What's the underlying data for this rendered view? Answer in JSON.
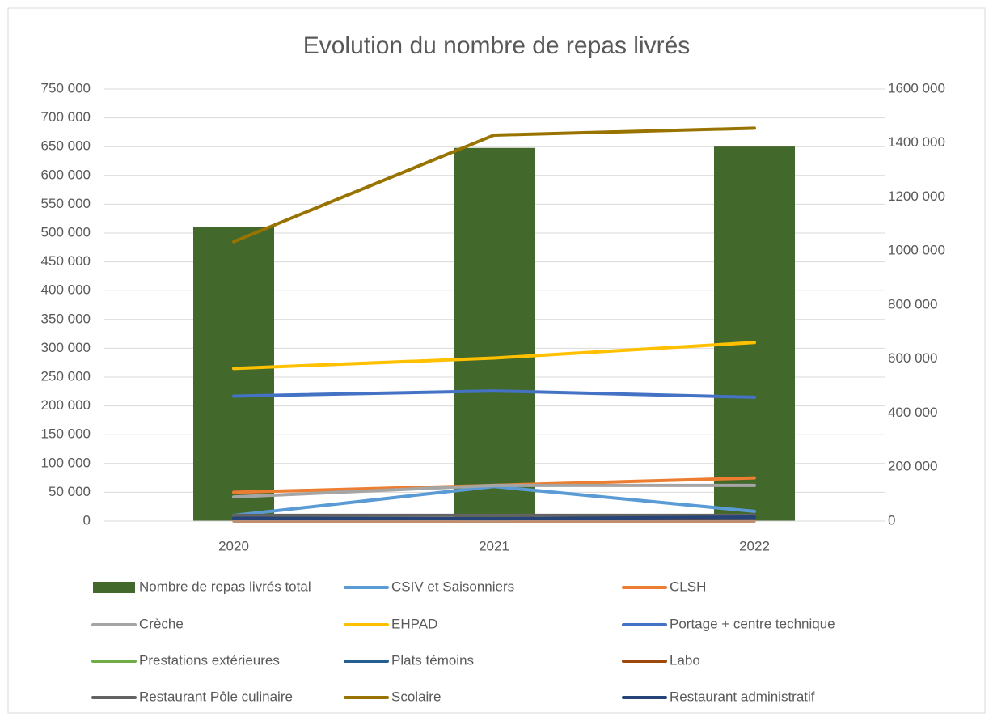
{
  "chart_data": {
    "type": "combo",
    "title": "Evolution du nombre de repas livrés",
    "categories": [
      "2020",
      "2021",
      "2022"
    ],
    "ylim": [
      0,
      750000
    ],
    "yticks": [
      {
        "value": 0,
        "label": "0"
      },
      {
        "value": 50000,
        "label": "50 000"
      },
      {
        "value": 100000,
        "label": "100 000"
      },
      {
        "value": 150000,
        "label": "150 000"
      },
      {
        "value": 200000,
        "label": "200 000"
      },
      {
        "value": 250000,
        "label": "250 000"
      },
      {
        "value": 300000,
        "label": "300 000"
      },
      {
        "value": 350000,
        "label": "350 000"
      },
      {
        "value": 400000,
        "label": "400 000"
      },
      {
        "value": 450000,
        "label": "450 000"
      },
      {
        "value": 500000,
        "label": "500 000"
      },
      {
        "value": 550000,
        "label": "550 000"
      },
      {
        "value": 600000,
        "label": "600 000"
      },
      {
        "value": 650000,
        "label": "650 000"
      },
      {
        "value": 700000,
        "label": "700 000"
      },
      {
        "value": 750000,
        "label": "750 000"
      }
    ],
    "y2lim": [
      0,
      1600000
    ],
    "y2ticks": [
      {
        "value": 0,
        "label": "0"
      },
      {
        "value": 200000,
        "label": "200 000"
      },
      {
        "value": 400000,
        "label": "400 000"
      },
      {
        "value": 600000,
        "label": "600 000"
      },
      {
        "value": 800000,
        "label": "800 000"
      },
      {
        "value": 1000000,
        "label": "1000 000"
      },
      {
        "value": 1200000,
        "label": "1200 000"
      },
      {
        "value": 1400000,
        "label": "1400 000"
      },
      {
        "value": 1600000,
        "label": "1600 000"
      }
    ],
    "grid": true,
    "series": [
      {
        "name": "Nombre de repas livrés total",
        "type": "bar",
        "axis": "y2",
        "color": "#43682b",
        "values": [
          1090000,
          1382000,
          1387000
        ]
      },
      {
        "name": "CSIV et Saisonniers",
        "type": "line",
        "color": "#5b9bd5",
        "values": [
          10000,
          60000,
          17000
        ]
      },
      {
        "name": "CLSH",
        "type": "line",
        "color": "#ed7d31",
        "values": [
          50000,
          62000,
          75000
        ]
      },
      {
        "name": "Crèche",
        "type": "line",
        "color": "#a5a5a5",
        "values": [
          42000,
          62000,
          62000
        ]
      },
      {
        "name": "EHPAD",
        "type": "line",
        "color": "#ffc000",
        "values": [
          265000,
          283000,
          310000
        ]
      },
      {
        "name": "Portage + centre technique",
        "type": "line",
        "color": "#4472c4",
        "values": [
          217000,
          226000,
          215000
        ]
      },
      {
        "name": "Prestations extérieures",
        "type": "line",
        "color": "#70ad47",
        "values": [
          1000,
          1000,
          1000
        ]
      },
      {
        "name": "Plats témoins",
        "type": "line",
        "color": "#255e91",
        "values": [
          3000,
          3000,
          3000
        ]
      },
      {
        "name": "Labo",
        "type": "line",
        "color": "#9e480e",
        "values": [
          500,
          500,
          500
        ]
      },
      {
        "name": "Restaurant Pôle culinaire",
        "type": "line",
        "color": "#636363",
        "values": [
          10000,
          10000,
          10000
        ]
      },
      {
        "name": "Scolaire",
        "type": "line",
        "color": "#997300",
        "values": [
          485000,
          670000,
          682000
        ]
      },
      {
        "name": "Restaurant administratif",
        "type": "line",
        "color": "#264478",
        "values": [
          5000,
          4000,
          7000
        ]
      }
    ]
  }
}
